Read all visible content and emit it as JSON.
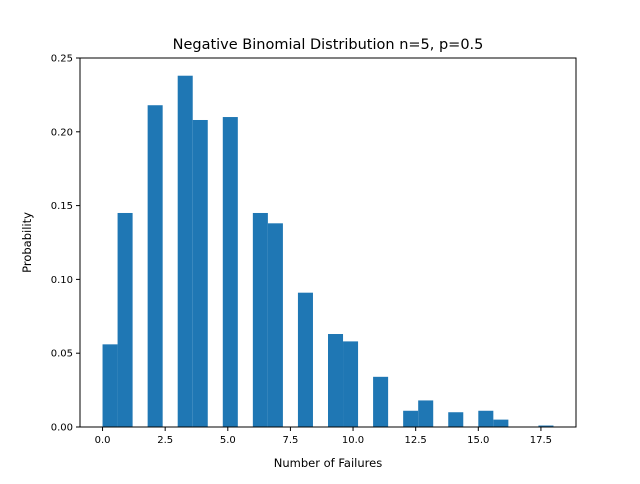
{
  "chart_data": {
    "type": "bar",
    "title": "Negative Binomial Distribution n=5, p=0.5",
    "xlabel": "Number of Failures",
    "ylabel": "Probability",
    "xlim": [
      -0.9,
      18.9
    ],
    "ylim": [
      0,
      0.25
    ],
    "xticks": [
      0.0,
      2.5,
      5.0,
      7.5,
      10.0,
      12.5,
      15.0,
      17.5
    ],
    "xtick_labels": [
      "0.0",
      "2.5",
      "5.0",
      "7.5",
      "10.0",
      "12.5",
      "15.0",
      "17.5"
    ],
    "yticks": [
      0.0,
      0.05,
      0.1,
      0.15,
      0.2,
      0.25
    ],
    "ytick_labels": [
      "0.00",
      "0.05",
      "0.10",
      "0.15",
      "0.20",
      "0.25"
    ],
    "bin_width": 0.6,
    "bars": [
      {
        "x0": 0.0,
        "value": 0.056
      },
      {
        "x0": 0.6,
        "value": 0.145
      },
      {
        "x0": 1.8,
        "value": 0.218
      },
      {
        "x0": 3.0,
        "value": 0.238
      },
      {
        "x0": 3.6,
        "value": 0.208
      },
      {
        "x0": 4.8,
        "value": 0.21
      },
      {
        "x0": 6.0,
        "value": 0.145
      },
      {
        "x0": 6.6,
        "value": 0.138
      },
      {
        "x0": 7.8,
        "value": 0.091
      },
      {
        "x0": 9.0,
        "value": 0.063
      },
      {
        "x0": 9.6,
        "value": 0.058
      },
      {
        "x0": 10.8,
        "value": 0.034
      },
      {
        "x0": 12.0,
        "value": 0.011
      },
      {
        "x0": 12.6,
        "value": 0.018
      },
      {
        "x0": 13.8,
        "value": 0.01
      },
      {
        "x0": 15.0,
        "value": 0.011
      },
      {
        "x0": 15.6,
        "value": 0.005
      },
      {
        "x0": 17.4,
        "value": 0.001
      }
    ],
    "grid": false,
    "legend": "none",
    "colors": {
      "bar": "#1f77b4",
      "axes": "#000000"
    }
  }
}
